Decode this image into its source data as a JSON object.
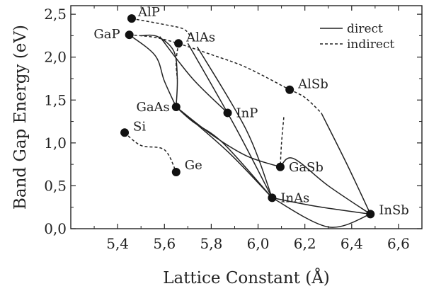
{
  "chart_data": {
    "type": "scatter",
    "xlabel": "Lattice Constant (Å)",
    "ylabel": "Band Gap Energy (eV)",
    "xlim": [
      5.2,
      6.7
    ],
    "ylim": [
      0.0,
      2.6
    ],
    "x_ticks": [
      5.4,
      5.6,
      5.8,
      6.0,
      6.2,
      6.4,
      6.6
    ],
    "x_tick_labels": [
      "5,4",
      "5,6",
      "5,8",
      "6,0",
      "6,2",
      "6,4",
      "6,6"
    ],
    "y_ticks": [
      0.0,
      0.5,
      1.0,
      1.5,
      2.0,
      2.5
    ],
    "y_tick_labels": [
      "0,0",
      "0,5",
      "1,0",
      "1,5",
      "2,0",
      "2,5"
    ],
    "grid": false,
    "legend_position": "top-right",
    "legend": [
      {
        "label": "direct",
        "style": "solid"
      },
      {
        "label": "indirect",
        "style": "dashed"
      }
    ],
    "points": [
      {
        "name": "AlP",
        "x": 5.46,
        "y": 2.45
      },
      {
        "name": "GaP",
        "x": 5.45,
        "y": 2.26
      },
      {
        "name": "AlAs",
        "x": 5.66,
        "y": 2.16
      },
      {
        "name": "AlSb",
        "x": 6.135,
        "y": 1.62
      },
      {
        "name": "GaAs",
        "x": 5.65,
        "y": 1.42
      },
      {
        "name": "InP",
        "x": 5.87,
        "y": 1.35
      },
      {
        "name": "Si",
        "x": 5.43,
        "y": 1.12
      },
      {
        "name": "GaSb",
        "x": 6.095,
        "y": 0.72
      },
      {
        "name": "Ge",
        "x": 5.65,
        "y": 0.66
      },
      {
        "name": "InAs",
        "x": 6.06,
        "y": 0.36
      },
      {
        "name": "InSb",
        "x": 6.48,
        "y": 0.17
      }
    ],
    "series": [
      {
        "style": "dashed",
        "points": [
          [
            5.46,
            2.45
          ],
          [
            5.6,
            2.38
          ],
          [
            5.68,
            2.33
          ],
          [
            5.71,
            2.25
          ]
        ]
      },
      {
        "style": "dashed",
        "points": [
          [
            5.45,
            2.26
          ],
          [
            5.56,
            2.23
          ],
          [
            5.66,
            2.16
          ]
        ]
      },
      {
        "style": "dashed",
        "points": [
          [
            5.66,
            2.16
          ],
          [
            5.8,
            2.03
          ],
          [
            5.95,
            1.88
          ],
          [
            6.135,
            1.62
          ]
        ]
      },
      {
        "style": "dashed",
        "points": [
          [
            6.135,
            1.62
          ],
          [
            6.2,
            1.53
          ],
          [
            6.27,
            1.35
          ]
        ]
      },
      {
        "style": "dashed",
        "points": [
          [
            6.11,
            1.3
          ],
          [
            6.1,
            0.99
          ],
          [
            6.095,
            0.72
          ]
        ]
      },
      {
        "style": "dashed",
        "points": [
          [
            5.66,
            2.16
          ],
          [
            5.65,
            1.95
          ],
          [
            5.655,
            1.75
          ]
        ]
      },
      {
        "style": "dashed",
        "points": [
          [
            5.43,
            1.12
          ],
          [
            5.5,
            0.97
          ],
          [
            5.6,
            0.92
          ],
          [
            5.65,
            0.66
          ]
        ]
      },
      {
        "style": "solid",
        "points": [
          [
            5.45,
            2.26
          ],
          [
            5.56,
            2.02
          ],
          [
            5.6,
            1.72
          ],
          [
            5.65,
            1.42
          ]
        ]
      },
      {
        "style": "solid",
        "points": [
          [
            5.5,
            2.25
          ],
          [
            5.57,
            2.24
          ],
          [
            5.64,
            2.07
          ],
          [
            5.655,
            1.75
          ],
          [
            5.65,
            1.42
          ]
        ]
      },
      {
        "style": "solid",
        "points": [
          [
            5.65,
            1.42
          ],
          [
            5.72,
            1.25
          ],
          [
            5.85,
            1.0
          ],
          [
            6.06,
            0.36
          ]
        ]
      },
      {
        "style": "solid",
        "points": [
          [
            5.65,
            1.42
          ],
          [
            5.8,
            1.1
          ],
          [
            5.95,
            0.85
          ],
          [
            6.095,
            0.72
          ]
        ]
      },
      {
        "style": "solid",
        "points": [
          [
            5.65,
            1.42
          ],
          [
            5.87,
            0.9
          ],
          [
            6.06,
            0.36
          ]
        ]
      },
      {
        "style": "solid",
        "points": [
          [
            5.58,
            2.24
          ],
          [
            5.72,
            1.75
          ],
          [
            5.87,
            1.35
          ]
        ]
      },
      {
        "style": "solid",
        "points": [
          [
            5.7,
            2.16
          ],
          [
            5.9,
            1.2
          ],
          [
            6.06,
            0.36
          ]
        ]
      },
      {
        "style": "solid",
        "points": [
          [
            5.74,
            2.12
          ],
          [
            5.95,
            1.15
          ],
          [
            6.06,
            0.36
          ]
        ]
      },
      {
        "style": "solid",
        "points": [
          [
            6.06,
            0.36
          ],
          [
            6.25,
            0.26
          ],
          [
            6.48,
            0.17
          ]
        ]
      },
      {
        "style": "solid",
        "points": [
          [
            6.095,
            0.72
          ],
          [
            6.15,
            0.82
          ],
          [
            6.3,
            0.5
          ],
          [
            6.48,
            0.17
          ]
        ]
      },
      {
        "style": "solid",
        "points": [
          [
            6.27,
            1.35
          ],
          [
            6.38,
            0.75
          ],
          [
            6.48,
            0.17
          ]
        ]
      },
      {
        "style": "solid",
        "points": [
          [
            6.06,
            0.36
          ],
          [
            6.3,
            0.02
          ],
          [
            6.48,
            0.17
          ]
        ]
      }
    ]
  }
}
